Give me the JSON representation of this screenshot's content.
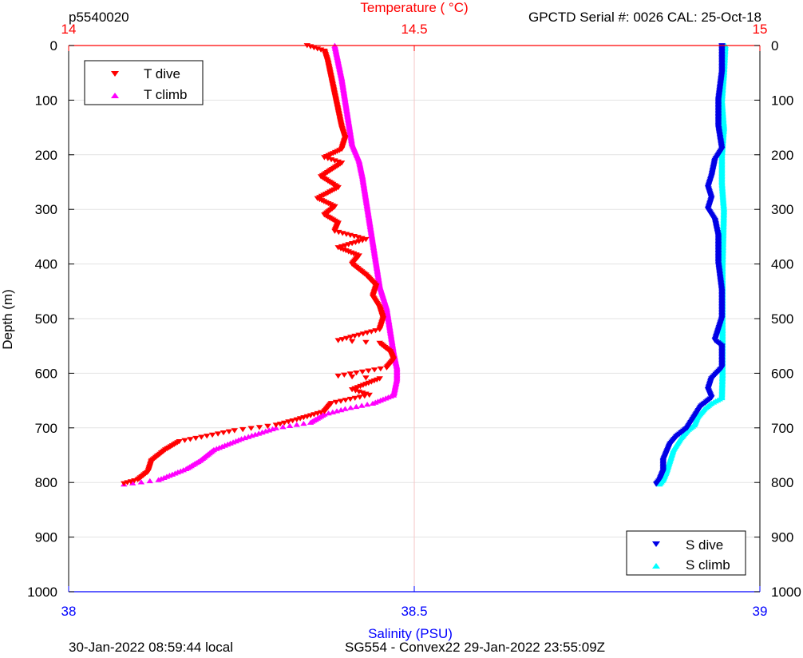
{
  "header": {
    "profile_id": "p5540020",
    "calibration": "GPCTD Serial #: 0026 CAL: 25-Oct-18"
  },
  "footer": {
    "local_time": "30-Jan-2022 08:59:44 local",
    "mission": "SG554 - Convex22 29-Jan-2022 23:55:09Z"
  },
  "chart_data": {
    "type": "scatter",
    "top_axis": {
      "label": "Temperature (    °C)",
      "range": [
        14,
        15
      ],
      "ticks": [
        "14",
        "14.5",
        "15"
      ],
      "color": "#ff0000"
    },
    "bottom_axis": {
      "label": "Salinity (PSU)",
      "range": [
        38,
        39
      ],
      "ticks": [
        "38",
        "38.5",
        "39"
      ],
      "color": "#0000ff"
    },
    "y_axis": {
      "label": "Depth (m)",
      "range": [
        0,
        1000
      ],
      "reversed": true,
      "ticks": [
        "0",
        "100",
        "200",
        "300",
        "400",
        "500",
        "600",
        "700",
        "800",
        "900",
        "1000"
      ]
    },
    "grid": true,
    "legends": [
      {
        "placement": "top-left",
        "entries": [
          "T dive",
          "T climb"
        ]
      },
      {
        "placement": "bottom-right",
        "entries": [
          "S dive",
          "S climb"
        ]
      }
    ],
    "series": [
      {
        "name": "T dive",
        "axis": "temperature",
        "color": "#ff0000",
        "marker": "triangle-down",
        "points": [
          [
            14.345,
            0
          ],
          [
            14.37,
            10
          ],
          [
            14.375,
            30
          ],
          [
            14.38,
            60
          ],
          [
            14.385,
            90
          ],
          [
            14.39,
            120
          ],
          [
            14.395,
            150
          ],
          [
            14.4,
            170
          ],
          [
            14.395,
            190
          ],
          [
            14.37,
            205
          ],
          [
            14.395,
            215
          ],
          [
            14.365,
            240
          ],
          [
            14.39,
            260
          ],
          [
            14.36,
            280
          ],
          [
            14.385,
            295
          ],
          [
            14.37,
            310
          ],
          [
            14.39,
            325
          ],
          [
            14.385,
            340
          ],
          [
            14.43,
            355
          ],
          [
            14.39,
            370
          ],
          [
            14.42,
            385
          ],
          [
            14.41,
            400
          ],
          [
            14.43,
            420
          ],
          [
            14.445,
            440
          ],
          [
            14.44,
            460
          ],
          [
            14.45,
            480
          ],
          [
            14.455,
            500
          ],
          [
            14.45,
            520
          ],
          [
            14.39,
            540
          ],
          [
            14.45,
            545
          ],
          [
            14.465,
            560
          ],
          [
            14.47,
            575
          ],
          [
            14.46,
            590
          ],
          [
            14.39,
            605
          ],
          [
            14.45,
            610
          ],
          [
            14.41,
            630
          ],
          [
            14.435,
            640
          ],
          [
            14.38,
            655
          ],
          [
            14.37,
            670
          ],
          [
            14.33,
            685
          ],
          [
            14.3,
            695
          ],
          [
            14.24,
            705
          ],
          [
            14.2,
            715
          ],
          [
            14.16,
            725
          ],
          [
            14.14,
            740
          ],
          [
            14.12,
            760
          ],
          [
            14.115,
            780
          ],
          [
            14.1,
            795
          ],
          [
            14.08,
            802
          ]
        ]
      },
      {
        "name": "T climb",
        "axis": "temperature",
        "color": "#ff00ff",
        "marker": "triangle-up",
        "points": [
          [
            14.385,
            0
          ],
          [
            14.39,
            30
          ],
          [
            14.395,
            60
          ],
          [
            14.4,
            100
          ],
          [
            14.405,
            140
          ],
          [
            14.41,
            180
          ],
          [
            14.42,
            210
          ],
          [
            14.425,
            240
          ],
          [
            14.43,
            280
          ],
          [
            14.435,
            320
          ],
          [
            14.44,
            360
          ],
          [
            14.445,
            400
          ],
          [
            14.45,
            440
          ],
          [
            14.46,
            480
          ],
          [
            14.465,
            520
          ],
          [
            14.47,
            560
          ],
          [
            14.475,
            590
          ],
          [
            14.475,
            610
          ],
          [
            14.47,
            640
          ],
          [
            14.44,
            655
          ],
          [
            14.4,
            665
          ],
          [
            14.37,
            675
          ],
          [
            14.35,
            690
          ],
          [
            14.3,
            700
          ],
          [
            14.25,
            720
          ],
          [
            14.21,
            740
          ],
          [
            14.19,
            760
          ],
          [
            14.17,
            775
          ],
          [
            14.15,
            785
          ],
          [
            14.13,
            795
          ],
          [
            14.08,
            803
          ]
        ]
      },
      {
        "name": "S dive",
        "axis": "salinity",
        "color": "#0000e6",
        "marker": "triangle-down",
        "points": [
          [
            38.945,
            0
          ],
          [
            38.945,
            50
          ],
          [
            38.94,
            100
          ],
          [
            38.94,
            150
          ],
          [
            38.945,
            190
          ],
          [
            38.935,
            210
          ],
          [
            38.93,
            240
          ],
          [
            38.925,
            260
          ],
          [
            38.93,
            280
          ],
          [
            38.925,
            300
          ],
          [
            38.935,
            320
          ],
          [
            38.94,
            350
          ],
          [
            38.94,
            400
          ],
          [
            38.945,
            450
          ],
          [
            38.945,
            500
          ],
          [
            38.935,
            540
          ],
          [
            38.945,
            550
          ],
          [
            38.945,
            590
          ],
          [
            38.93,
            610
          ],
          [
            38.925,
            630
          ],
          [
            38.93,
            645
          ],
          [
            38.915,
            660
          ],
          [
            38.905,
            680
          ],
          [
            38.895,
            700
          ],
          [
            38.88,
            715
          ],
          [
            38.87,
            730
          ],
          [
            38.865,
            745
          ],
          [
            38.86,
            760
          ],
          [
            38.86,
            780
          ],
          [
            38.855,
            795
          ],
          [
            38.85,
            803
          ]
        ]
      },
      {
        "name": "S climb",
        "axis": "salinity",
        "color": "#00ffff",
        "marker": "triangle-up",
        "points": [
          [
            38.95,
            0
          ],
          [
            38.948,
            50
          ],
          [
            38.945,
            100
          ],
          [
            38.948,
            150
          ],
          [
            38.945,
            200
          ],
          [
            38.945,
            250
          ],
          [
            38.948,
            300
          ],
          [
            38.947,
            350
          ],
          [
            38.946,
            400
          ],
          [
            38.946,
            450
          ],
          [
            38.946,
            500
          ],
          [
            38.946,
            550
          ],
          [
            38.946,
            600
          ],
          [
            38.945,
            645
          ],
          [
            38.93,
            655
          ],
          [
            38.92,
            665
          ],
          [
            38.91,
            680
          ],
          [
            38.905,
            695
          ],
          [
            38.895,
            705
          ],
          [
            38.885,
            720
          ],
          [
            38.875,
            740
          ],
          [
            38.87,
            760
          ],
          [
            38.865,
            780
          ],
          [
            38.86,
            795
          ],
          [
            38.855,
            803
          ]
        ]
      }
    ]
  }
}
